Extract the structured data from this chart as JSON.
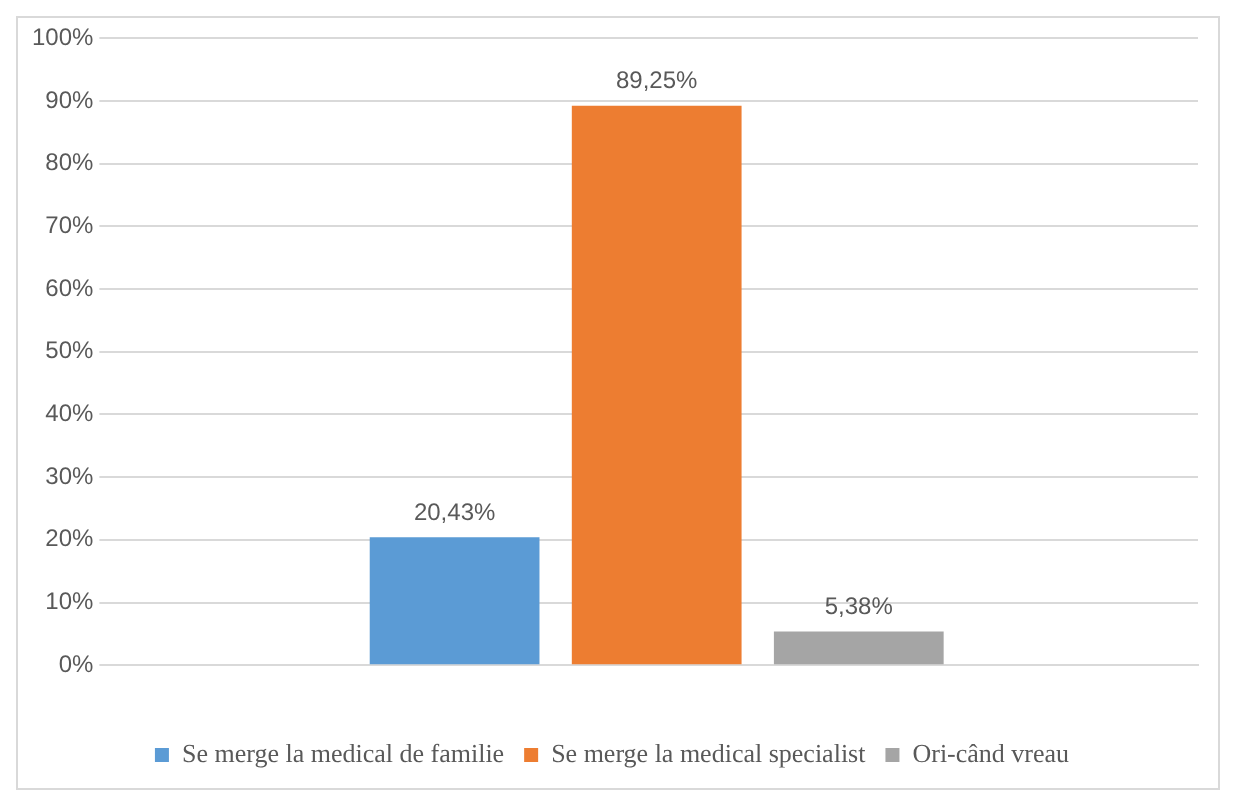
{
  "chart_data": {
    "type": "bar",
    "categories": [
      null
    ],
    "series": [
      {
        "name": "Se merge la medical de familie",
        "color": "#5b9bd5",
        "values": [
          20.43
        ],
        "value_labels": [
          "20,43%"
        ]
      },
      {
        "name": "Se merge la medical specialist",
        "color": "#ed7d31",
        "values": [
          89.25
        ],
        "value_labels": [
          "89,25%"
        ]
      },
      {
        "name": "Ori-când vreau",
        "color": "#a5a5a5",
        "values": [
          5.38
        ],
        "value_labels": [
          "5,38%"
        ]
      }
    ],
    "ylim": [
      0,
      100
    ],
    "yticks": [
      {
        "value": 0,
        "label": "0%"
      },
      {
        "value": 10,
        "label": "10%"
      },
      {
        "value": 20,
        "label": "20%"
      },
      {
        "value": 30,
        "label": "30%"
      },
      {
        "value": 40,
        "label": "40%"
      },
      {
        "value": 50,
        "label": "50%"
      },
      {
        "value": 60,
        "label": "60%"
      },
      {
        "value": 70,
        "label": "70%"
      },
      {
        "value": 80,
        "label": "80%"
      },
      {
        "value": 90,
        "label": "90%"
      },
      {
        "value": 100,
        "label": "100%"
      }
    ],
    "grid": "y",
    "legend": "bottom"
  }
}
